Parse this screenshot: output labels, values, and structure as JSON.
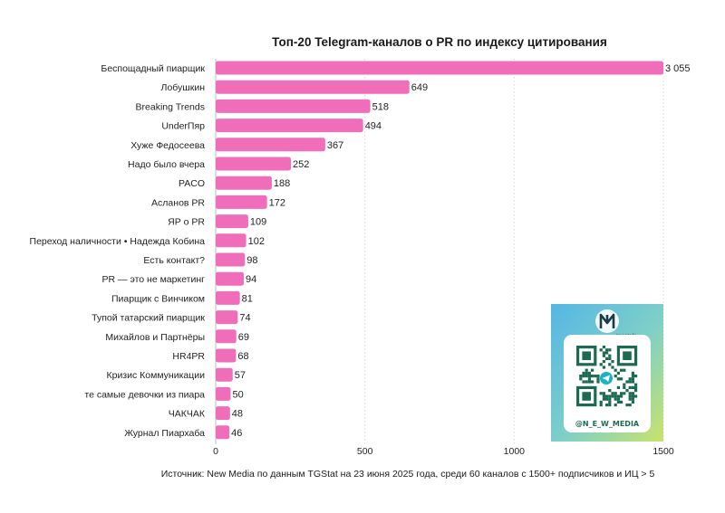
{
  "chart_data": {
    "type": "bar",
    "orientation": "horizontal",
    "title": "Топ-20 Telegram-каналов о PR по индексу цитирования",
    "categories": [
      "Беспощадный пиарщик",
      "Лобушкин",
      "Breaking Trends",
      "UnderПяр",
      "Хуже Федосеева",
      "Надо было вчера",
      "PACO",
      "Асланов PR",
      "ЯР о PR",
      "Переход наличности • Надежда Кобина",
      "Есть контакт?",
      "PR — это не маркетинг",
      "Пиарщик с Винчиком",
      "Тупой татарский пиарщик",
      "Михайлов и Партнёры",
      "HR4PR",
      "Кризис Коммуникации",
      "те самые девочки из пиара",
      "ЧАКЧАК",
      "Журнал Пиархаба"
    ],
    "values": [
      3055,
      649,
      518,
      494,
      367,
      252,
      188,
      172,
      109,
      102,
      98,
      94,
      81,
      74,
      69,
      68,
      57,
      50,
      48,
      46
    ],
    "value_labels": [
      "3 055",
      "649",
      "518",
      "494",
      "367",
      "252",
      "188",
      "172",
      "109",
      "102",
      "98",
      "94",
      "81",
      "74",
      "69",
      "68",
      "57",
      "50",
      "48",
      "46"
    ],
    "xlim": [
      0,
      1500
    ],
    "xticks": [
      0,
      500,
      1000,
      1500
    ],
    "bar_color": "#f06eb9",
    "grid": "vertical, dotted",
    "axis_broken_for_first_bar": true,
    "source_note": "Источник: New Media по данным TGStat на 23 июня 2025 года, среди 60 каналов с 1500+ подписчиков и ИЦ > 5"
  },
  "promo": {
    "qr_handle": "@N_E_W_MEDIA",
    "logo_caption": "New Media",
    "icon": "telegram-icon",
    "gradient_colors": [
      "#55b6e6",
      "#7fd0c6",
      "#c9e36a"
    ]
  }
}
